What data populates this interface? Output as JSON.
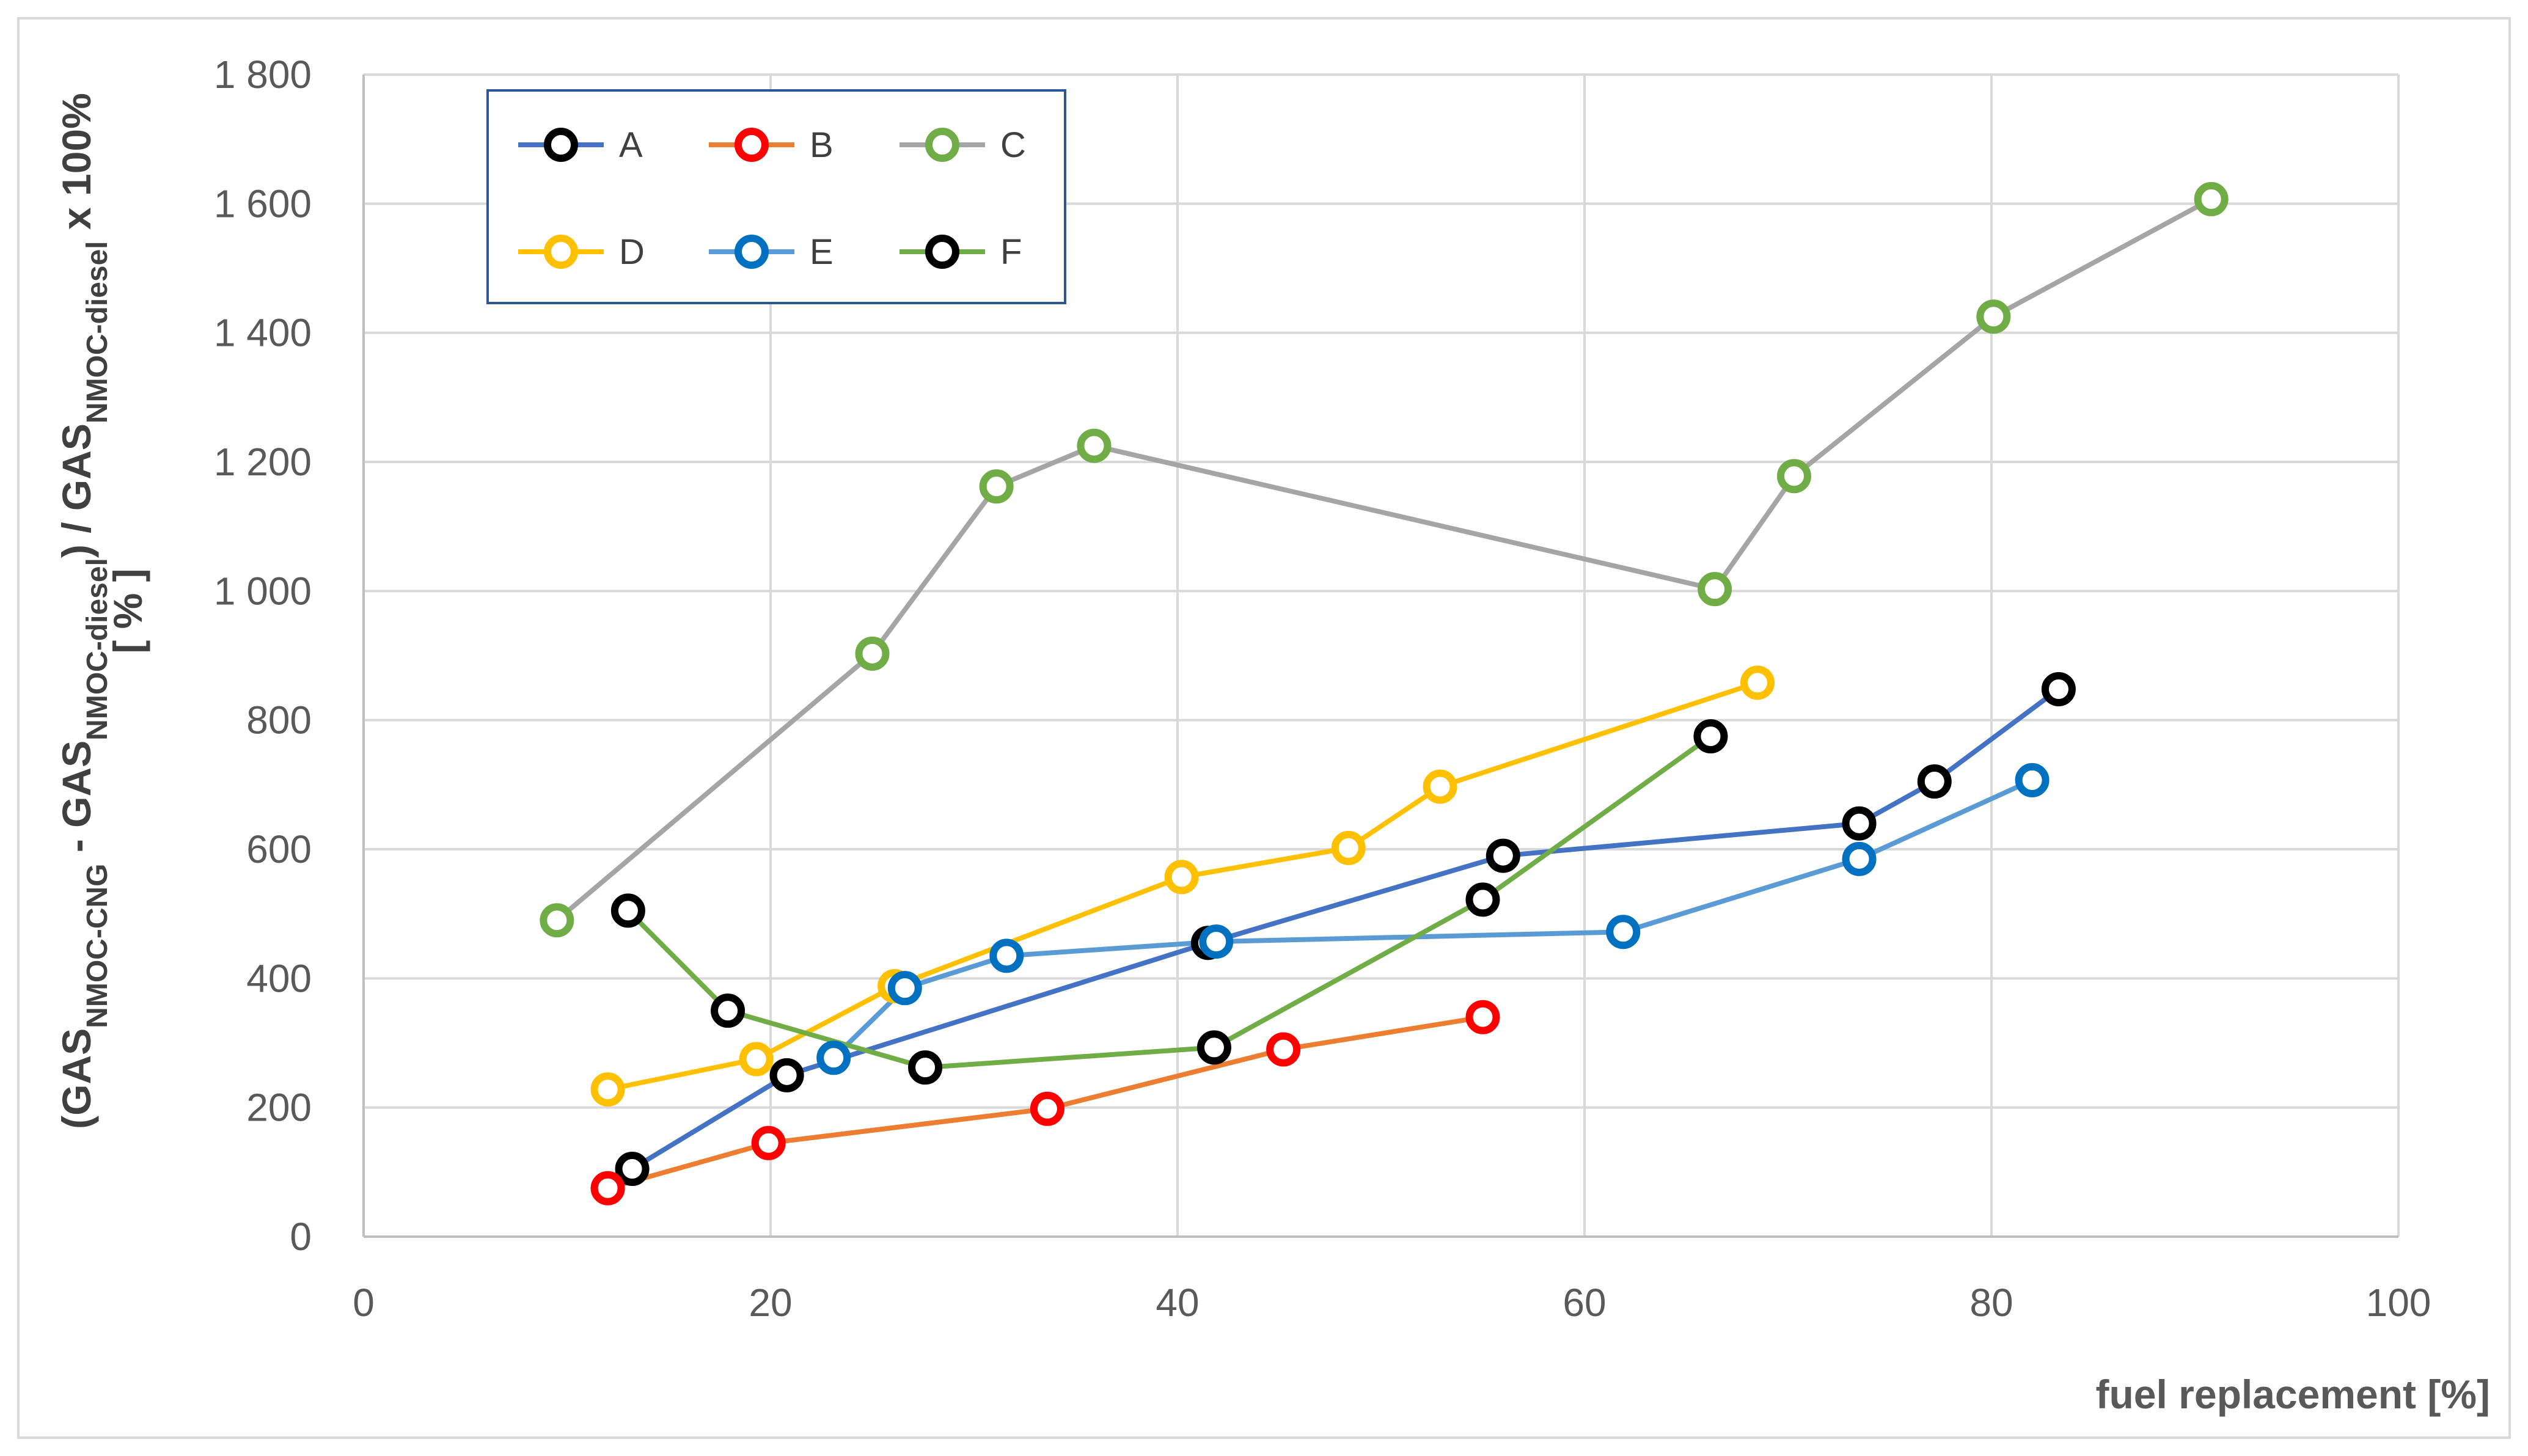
{
  "chart_data": {
    "type": "line",
    "xlabel": "fuel replacement [%]",
    "ylabel": {
      "prefix": "(GAS",
      "sub1": "NMOC-CNG",
      "mid": " - GAS",
      "sub2": "NMOC-diesel",
      "mid2": ") / GAS",
      "sub3": "NMOC-diesel",
      "suffix": " x 100%",
      "line2": "[ % ]"
    },
    "xlim": [
      0,
      100
    ],
    "ylim": [
      0,
      1800
    ],
    "xticks": [
      0,
      20,
      40,
      60,
      80,
      100
    ],
    "xtick_labels": [
      "0",
      "20",
      "40",
      "60",
      "80",
      "100"
    ],
    "yticks": [
      0,
      200,
      400,
      600,
      800,
      1000,
      1200,
      1400,
      1600,
      1800
    ],
    "ytick_labels": [
      "0",
      "200",
      "400",
      "600",
      "800",
      "1 000",
      "1 200",
      "1 400",
      "1 600",
      "1 800"
    ],
    "grid": true,
    "legend_position": "top-left",
    "series": [
      {
        "name": "A",
        "line_color": "#4472c4",
        "marker_color": "#000000",
        "x": [
          13.2,
          20.8,
          41.5,
          56.0,
          73.5,
          77.2,
          83.3
        ],
        "y": [
          105,
          250,
          455,
          590,
          640,
          705,
          848
        ]
      },
      {
        "name": "B",
        "line_color": "#ed7d31",
        "marker_color": "#ff0000",
        "x": [
          12.0,
          19.9,
          33.6,
          45.2,
          55.0
        ],
        "y": [
          75,
          145,
          198,
          290,
          340
        ]
      },
      {
        "name": "C",
        "line_color": "#a5a5a5",
        "marker_color": "#70ad47",
        "x": [
          9.5,
          25.0,
          31.1,
          35.9,
          66.4,
          70.3,
          80.1,
          90.8
        ],
        "y": [
          490,
          903,
          1162,
          1225,
          1003,
          1178,
          1425,
          1607
        ]
      },
      {
        "name": "D",
        "line_color": "#ffc000",
        "marker_color": "#ffc000",
        "x": [
          12.0,
          19.3,
          26.1,
          40.2,
          48.4,
          52.9,
          68.5
        ],
        "y": [
          228,
          275,
          388,
          557,
          602,
          697,
          858
        ]
      },
      {
        "name": "E",
        "line_color": "#5b9bd5",
        "marker_color": "#0070c0",
        "x": [
          23.1,
          26.6,
          31.6,
          41.9,
          61.9,
          73.5,
          82.0
        ],
        "y": [
          277,
          385,
          435,
          457,
          472,
          585,
          707
        ]
      },
      {
        "name": "F",
        "line_color": "#70ad47",
        "marker_color": "#000000",
        "x": [
          13.0,
          17.9,
          27.6,
          41.8,
          55.0,
          66.2
        ],
        "y": [
          505,
          350,
          262,
          293,
          522,
          775
        ]
      }
    ]
  }
}
